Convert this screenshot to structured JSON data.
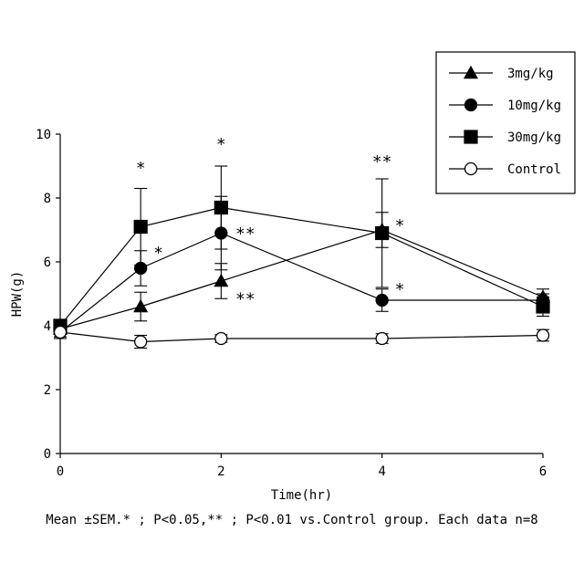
{
  "chart_data": {
    "type": "line",
    "xlabel": "Time(hr)",
    "ylabel": "HPW(g)",
    "xlim": [
      0,
      6
    ],
    "ylim": [
      0,
      10
    ],
    "x_ticks": [
      "0",
      "2",
      "4",
      "6"
    ],
    "y_ticks": [
      "0",
      "2",
      "4",
      "6",
      "8",
      "10"
    ],
    "grid": false,
    "legend_position": "top-right",
    "x": [
      0,
      1,
      2,
      4,
      6
    ],
    "series": [
      {
        "name": "3mg/kg",
        "marker": "triangle",
        "fill": "#000000",
        "values": [
          3.9,
          4.6,
          5.4,
          7.0,
          4.9
        ],
        "errors": [
          0.25,
          0.45,
          0.55,
          0.55,
          0.25
        ]
      },
      {
        "name": "10mg/kg",
        "marker": "circle",
        "fill": "#000000",
        "values": [
          3.8,
          5.8,
          6.9,
          4.8,
          4.8
        ],
        "errors": [
          0.2,
          0.55,
          1.15,
          0.35,
          0.2
        ]
      },
      {
        "name": "30mg/kg",
        "marker": "square",
        "fill": "#000000",
        "values": [
          4.0,
          7.1,
          7.7,
          6.9,
          4.6
        ],
        "errors": [
          0.2,
          1.2,
          1.3,
          1.7,
          0.3
        ]
      },
      {
        "name": "Control",
        "marker": "circle",
        "fill": "#ffffff",
        "values": [
          3.8,
          3.5,
          3.6,
          3.6,
          3.7
        ],
        "errors": [
          0.15,
          0.2,
          0.12,
          0.15,
          0.18
        ]
      }
    ],
    "annotations": [
      {
        "text": "*",
        "x": 1.0,
        "y": 9.0
      },
      {
        "text": "*",
        "x": 1.22,
        "y": 6.35
      },
      {
        "text": "*",
        "x": 2.0,
        "y": 9.75
      },
      {
        "text": "**",
        "x": 2.3,
        "y": 6.95
      },
      {
        "text": "**",
        "x": 2.3,
        "y": 4.9
      },
      {
        "text": "**",
        "x": 4.0,
        "y": 9.2
      },
      {
        "text": "*",
        "x": 4.22,
        "y": 7.2
      },
      {
        "text": "*",
        "x": 4.22,
        "y": 5.2
      }
    ]
  },
  "footnote": "Mean ±SEM.* ; P<0.05,** ; P<0.01 vs.Control group. Each data n=8"
}
